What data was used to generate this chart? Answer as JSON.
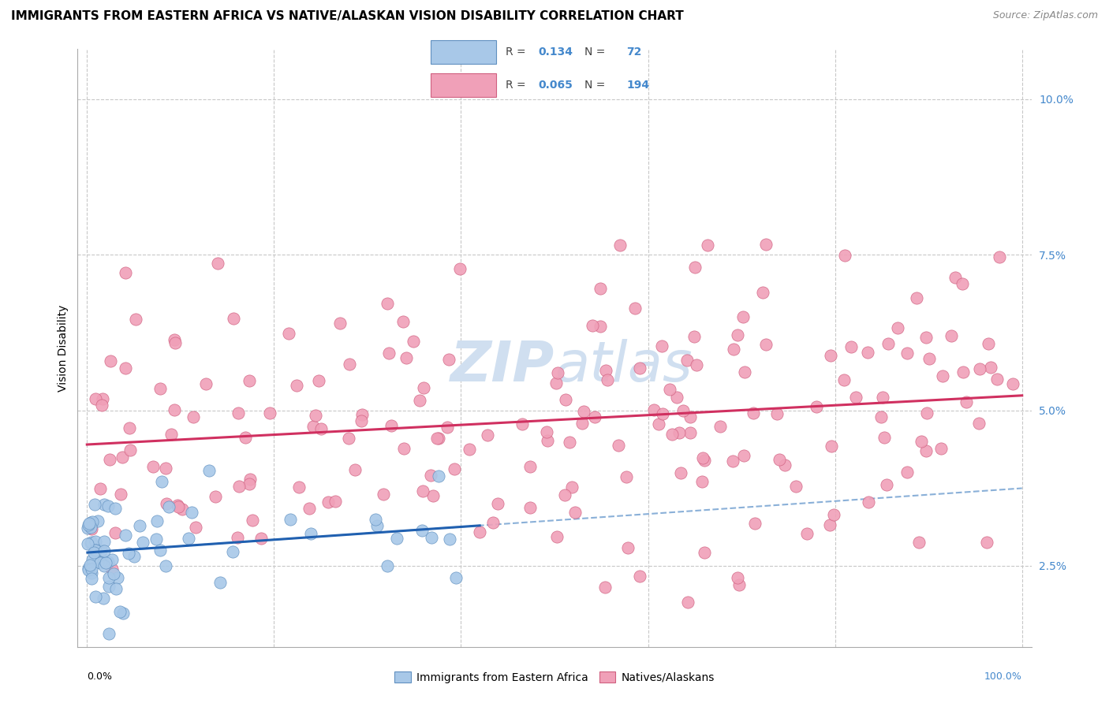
{
  "title": "IMMIGRANTS FROM EASTERN AFRICA VS NATIVE/ALASKAN VISION DISABILITY CORRELATION CHART",
  "source": "Source: ZipAtlas.com",
  "ylabel": "Vision Disability",
  "ylim": [
    0.012,
    0.108
  ],
  "xlim": [
    -0.01,
    1.01
  ],
  "blue_R": 0.134,
  "blue_N": 72,
  "pink_R": 0.065,
  "pink_N": 194,
  "blue_color": "#a8c8e8",
  "pink_color": "#f0a0b8",
  "blue_edge_color": "#6090c0",
  "pink_edge_color": "#d06080",
  "blue_line_color": "#2060b0",
  "pink_line_color": "#d03060",
  "blue_dashed_color": "#8ab0d8",
  "watermark_color": "#d0dff0",
  "legend_label_blue": "Immigrants from Eastern Africa",
  "legend_label_pink": "Natives/Alaskans",
  "background_color": "#ffffff",
  "grid_color": "#c8c8c8",
  "title_fontsize": 11,
  "right_ytick_color": "#4488cc",
  "seed": 42
}
